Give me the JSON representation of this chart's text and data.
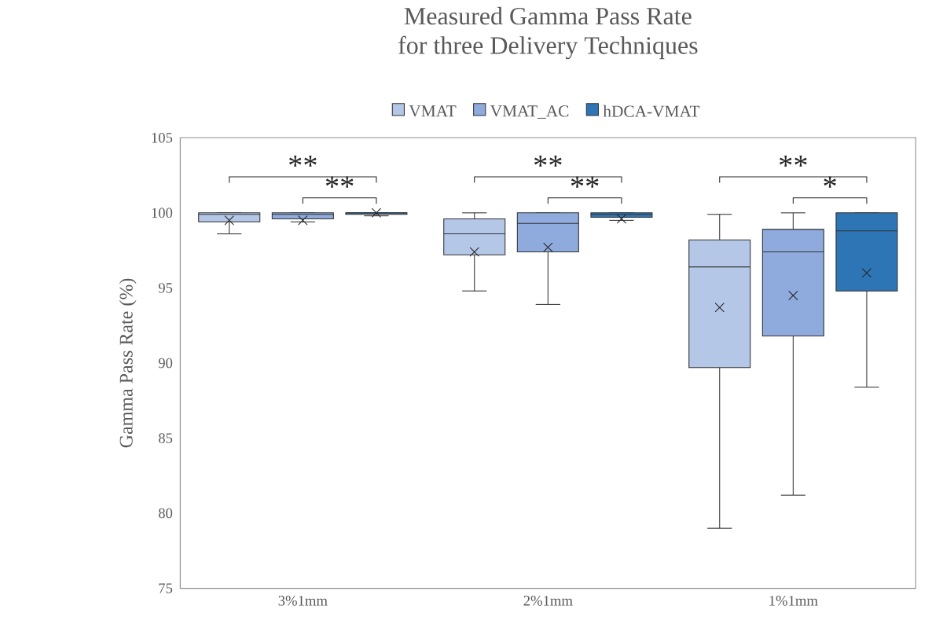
{
  "chart_data": {
    "type": "box",
    "title": "Measured Gamma Pass Rate\nfor three Delivery Techniques",
    "ylabel": "Gamma Pass Rate (%)",
    "categories": [
      "3%1mm",
      "2%1mm",
      "1%1mm"
    ],
    "series": [
      {
        "name": "VMAT",
        "color": "#b4c7e7",
        "boxes": [
          {
            "low": 98.6,
            "q1": 99.4,
            "median": 99.9,
            "q3": 100.0,
            "high": 100.0,
            "mean": 99.5
          },
          {
            "low": 94.8,
            "q1": 97.2,
            "median": 98.6,
            "q3": 99.6,
            "high": 100.0,
            "mean": 97.4
          },
          {
            "low": 79.0,
            "q1": 89.7,
            "median": 96.4,
            "q3": 98.2,
            "high": 99.9,
            "mean": 93.7
          }
        ]
      },
      {
        "name": "VMAT_AC",
        "color": "#8faadc",
        "boxes": [
          {
            "low": 99.4,
            "q1": 99.6,
            "median": 99.9,
            "q3": 100.0,
            "high": 100.0,
            "mean": 99.5
          },
          {
            "low": 93.9,
            "q1": 97.4,
            "median": 99.3,
            "q3": 100.0,
            "high": 100.0,
            "mean": 97.7
          },
          {
            "low": 81.2,
            "q1": 91.8,
            "median": 97.4,
            "q3": 98.9,
            "high": 100.0,
            "mean": 94.5
          }
        ]
      },
      {
        "name": "hDCA-VMAT",
        "color": "#2e75b6",
        "boxes": [
          {
            "low": 99.8,
            "q1": 99.9,
            "median": 100.0,
            "q3": 100.0,
            "high": 100.0,
            "mean": 100.0
          },
          {
            "low": 99.5,
            "q1": 99.7,
            "median": 99.9,
            "q3": 100.0,
            "high": 100.0,
            "mean": 99.6
          },
          {
            "low": 88.4,
            "q1": 94.8,
            "median": 98.8,
            "q3": 100.0,
            "high": 100.0,
            "mean": 96.0
          }
        ]
      }
    ],
    "ylim": [
      75,
      105
    ],
    "yticks": [
      75,
      80,
      85,
      90,
      95,
      100,
      105
    ],
    "legend": "top",
    "grid": false,
    "annotations": [
      "**",
      "**",
      "**",
      "**",
      "**",
      "*"
    ]
  }
}
